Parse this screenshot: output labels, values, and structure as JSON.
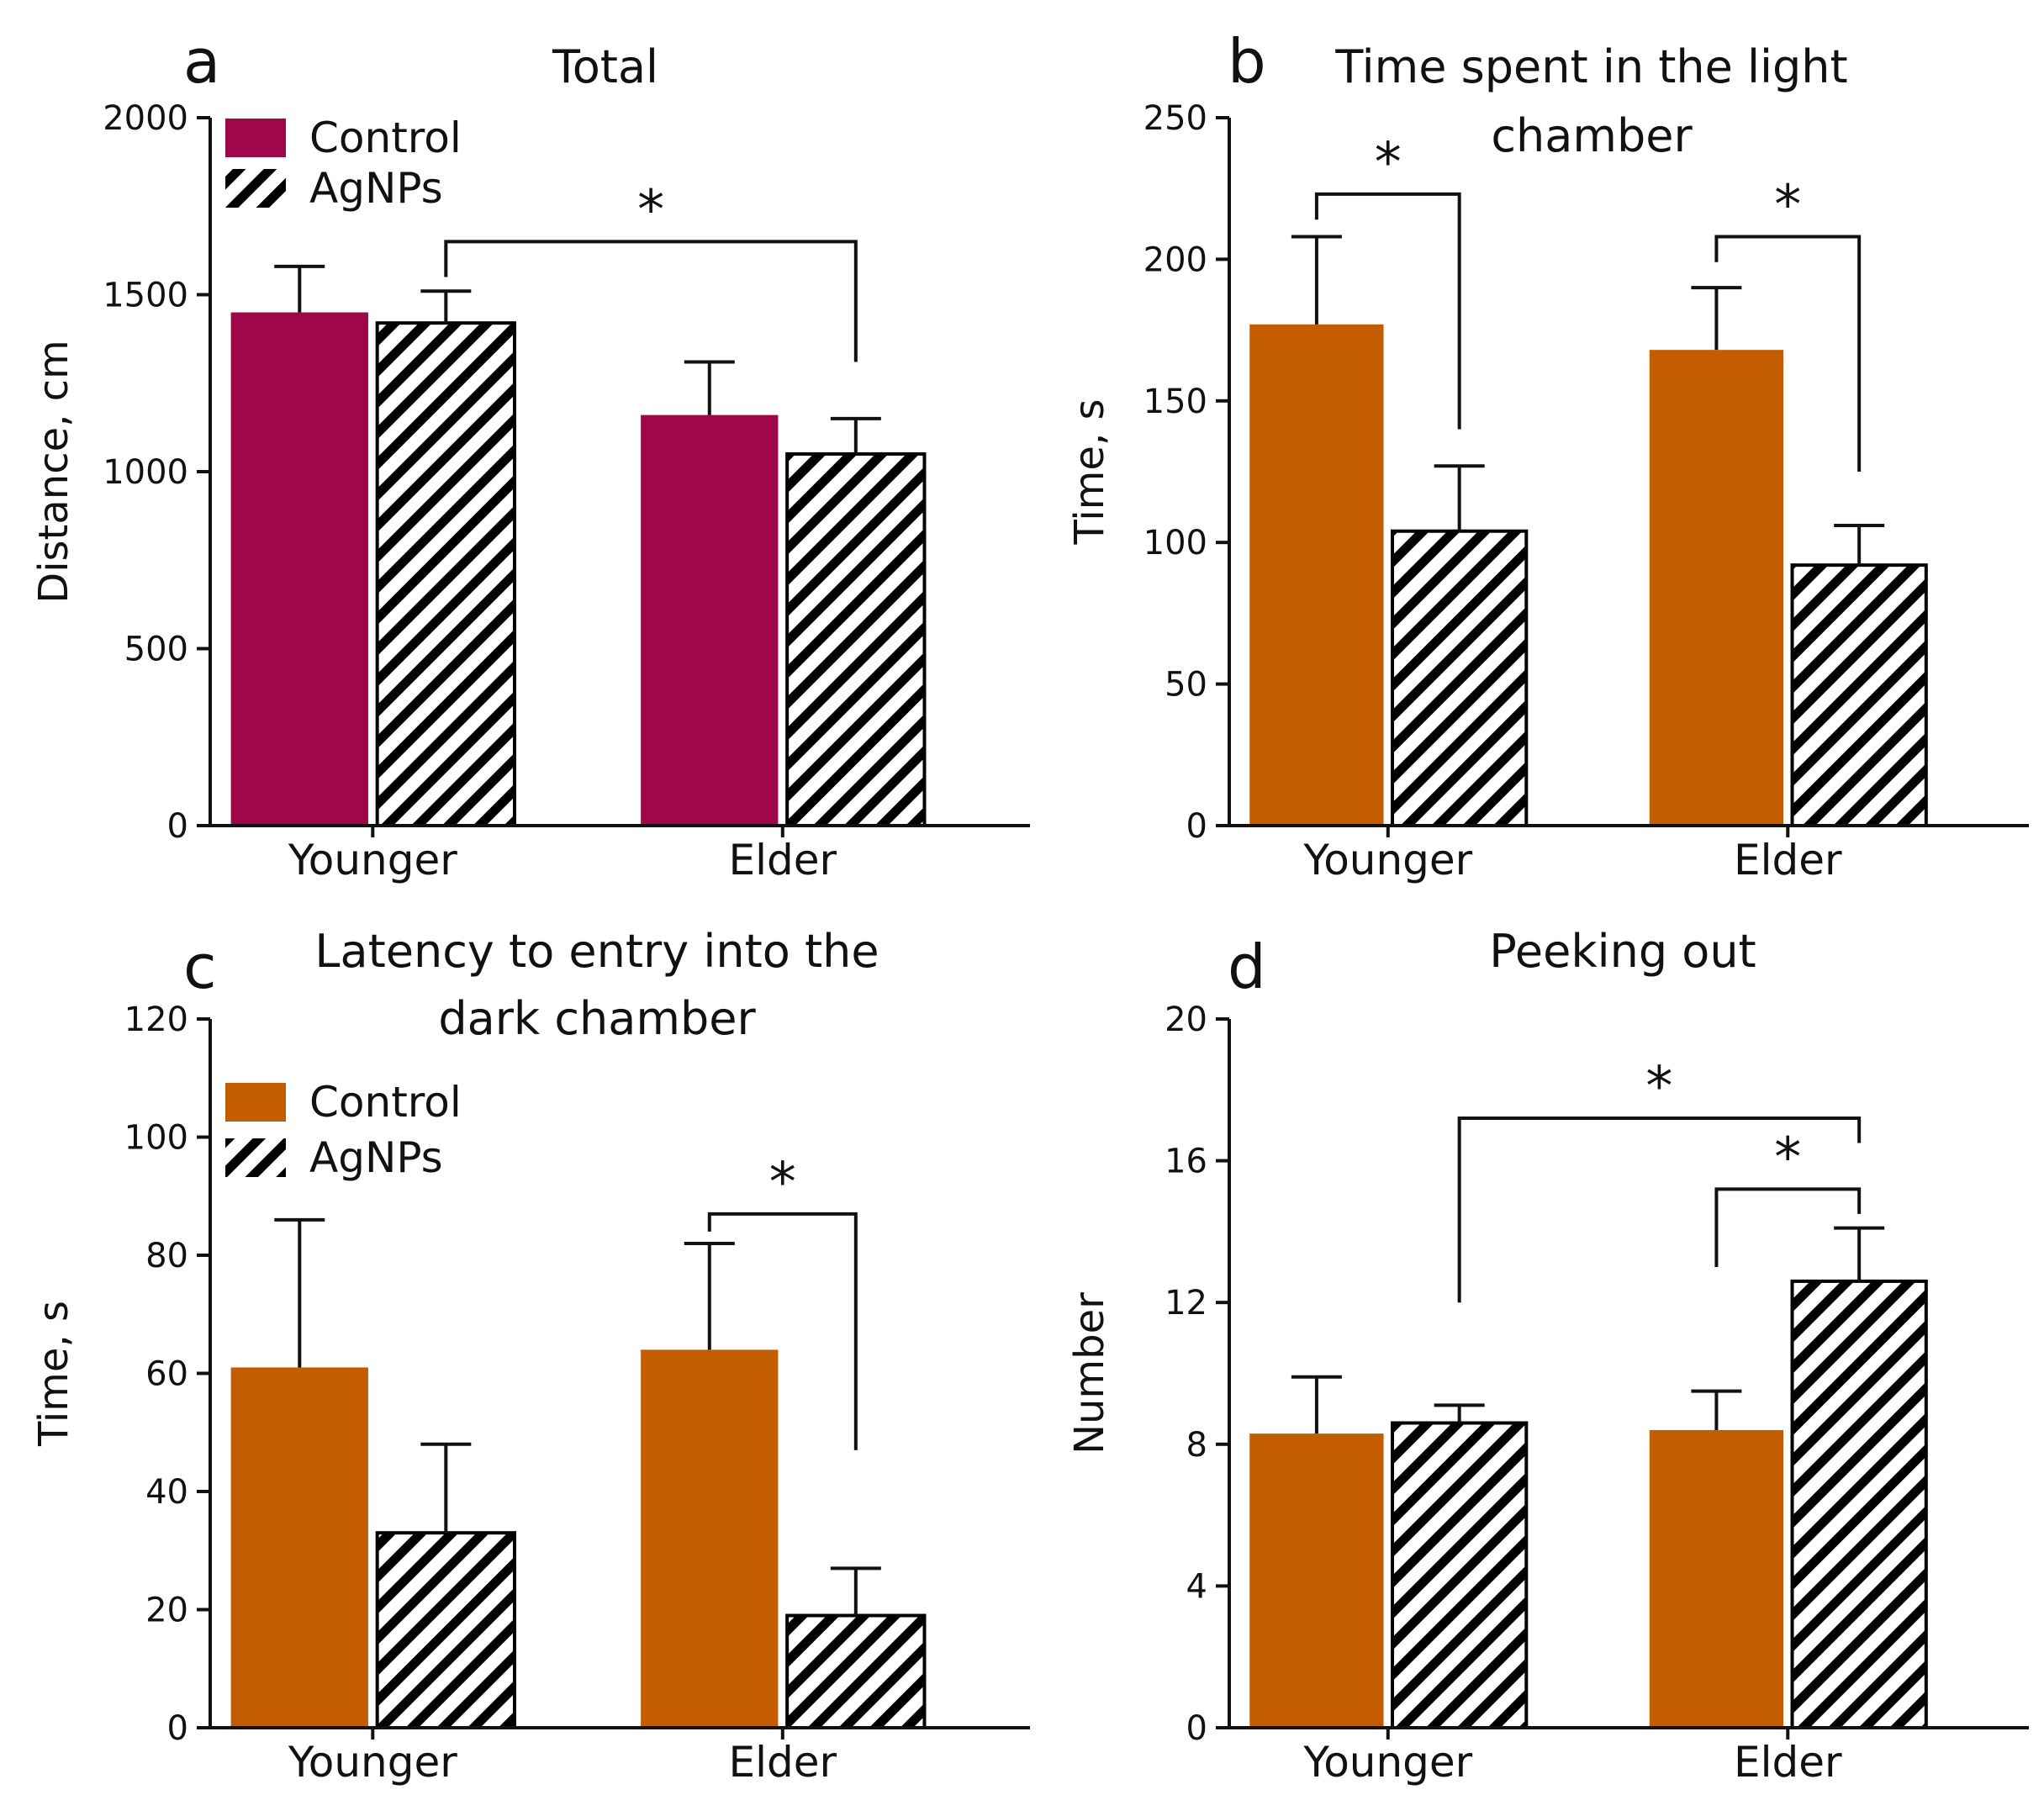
{
  "figure": {
    "colors": {
      "control_a": "#a0064a",
      "control_bcd": "#c45c00",
      "agnps_hatch": "#000000",
      "axis": "#111111"
    },
    "series_names": [
      "Control",
      "AgNPs"
    ]
  },
  "chart_data": [
    {
      "panel": "a",
      "type": "bar",
      "title": "Total",
      "xlabel": "",
      "ylabel": "Distance, cm",
      "ylim": [
        0,
        2000
      ],
      "yticks": [
        0,
        500,
        1000,
        1500,
        2000
      ],
      "categories": [
        "Younger",
        "Elder"
      ],
      "legend": [
        "Control",
        "AgNPs"
      ],
      "legend_position": "top-left",
      "series": [
        {
          "name": "Control",
          "values": [
            1450,
            1160
          ],
          "errors": [
            130,
            150
          ]
        },
        {
          "name": "AgNPs",
          "values": [
            1420,
            1050
          ],
          "errors": [
            90,
            100
          ]
        }
      ],
      "significance": [
        {
          "from": [
            0,
            1
          ],
          "to": [
            1,
            1
          ],
          "label": "*",
          "y": 1650,
          "from_drop": 1550,
          "to_drop": 1310
        }
      ]
    },
    {
      "panel": "b",
      "type": "bar",
      "title": "Time spent in the light chamber",
      "title_lines": [
        "Time spent in the light",
        "chamber"
      ],
      "xlabel": "",
      "ylabel": "Time, s",
      "ylim": [
        0,
        250
      ],
      "yticks": [
        0,
        50,
        100,
        150,
        200,
        250
      ],
      "categories": [
        "Younger",
        "Elder"
      ],
      "legend": [],
      "series": [
        {
          "name": "Control",
          "values": [
            177,
            168
          ],
          "errors": [
            31,
            22
          ]
        },
        {
          "name": "AgNPs",
          "values": [
            104,
            92
          ],
          "errors": [
            23,
            14
          ]
        }
      ],
      "significance": [
        {
          "from": [
            0,
            0
          ],
          "to": [
            0,
            1
          ],
          "label": "*",
          "y": 223,
          "from_drop": 214,
          "to_drop": 140
        },
        {
          "from": [
            1,
            0
          ],
          "to": [
            1,
            1
          ],
          "label": "*",
          "y": 208,
          "from_drop": 199,
          "to_drop": 125
        }
      ]
    },
    {
      "panel": "c",
      "type": "bar",
      "title": "Latency to entry into the dark chamber",
      "title_lines": [
        "Latency to entry into the",
        "dark chamber"
      ],
      "xlabel": "",
      "ylabel": "Time, s",
      "ylim": [
        0,
        120
      ],
      "yticks": [
        0,
        20,
        40,
        60,
        80,
        100,
        120
      ],
      "categories": [
        "Younger",
        "Elder"
      ],
      "legend": [
        "Control",
        "AgNPs"
      ],
      "legend_position": "top-left",
      "series": [
        {
          "name": "Control",
          "values": [
            61,
            64
          ],
          "errors": [
            25,
            18
          ]
        },
        {
          "name": "AgNPs",
          "values": [
            33,
            19
          ],
          "errors": [
            15,
            8
          ]
        }
      ],
      "significance": [
        {
          "from": [
            1,
            0
          ],
          "to": [
            1,
            1
          ],
          "label": "*",
          "y": 87,
          "from_drop": 84,
          "to_drop": 47
        }
      ]
    },
    {
      "panel": "d",
      "type": "bar",
      "title": "Peeking out",
      "xlabel": "",
      "ylabel": "Number",
      "ylim": [
        0,
        20
      ],
      "yticks": [
        0,
        4,
        8,
        12,
        16,
        20
      ],
      "categories": [
        "Younger",
        "Elder"
      ],
      "legend": [],
      "series": [
        {
          "name": "Control",
          "values": [
            8.3,
            8.4
          ],
          "errors": [
            1.6,
            1.1
          ]
        },
        {
          "name": "AgNPs",
          "values": [
            8.6,
            12.6
          ],
          "errors": [
            0.5,
            1.5
          ]
        }
      ],
      "significance": [
        {
          "from": [
            0,
            1
          ],
          "to": [
            1,
            1
          ],
          "label": "*",
          "y": 17.2,
          "from_drop": 12.0,
          "to_drop": 16.5
        },
        {
          "from": [
            1,
            0
          ],
          "to": [
            1,
            1
          ],
          "label": "*",
          "y": 15.2,
          "from_drop": 13.0,
          "to_drop": 14.5
        }
      ]
    }
  ]
}
